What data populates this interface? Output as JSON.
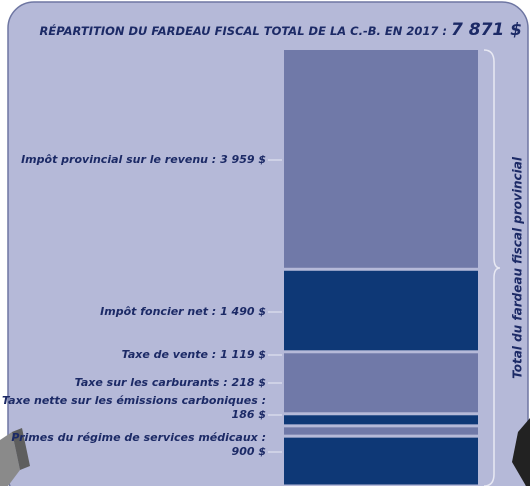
{
  "chart_data": {
    "type": "stacked_column",
    "title": "RÉPARTITION DU FARDEAU FISCAL TOTAL DE LA C.-B. EN 2017 :",
    "total_label": "7 871 $",
    "annotation": "Total du fardeau fiscal provincial",
    "categories": [
      "Impôt provincial sur le revenu :",
      "Impôt foncier net :",
      "Taxe de vente :",
      "Taxe sur les carburants :",
      "Taxe nette sur les émissions carboniques :",
      "Primes du régime de services médicaux :"
    ],
    "values": [
      3959,
      1490,
      1119,
      218,
      186,
      900
    ],
    "value_labels": [
      "3 959 $",
      "1 490 $",
      "1 119 $",
      "218 $",
      "186 $",
      "900 $"
    ],
    "colors": [
      "#7079a8",
      "#0e3876",
      "#7079a8",
      "#0e3876",
      "#7079a8",
      "#0e3876"
    ]
  }
}
